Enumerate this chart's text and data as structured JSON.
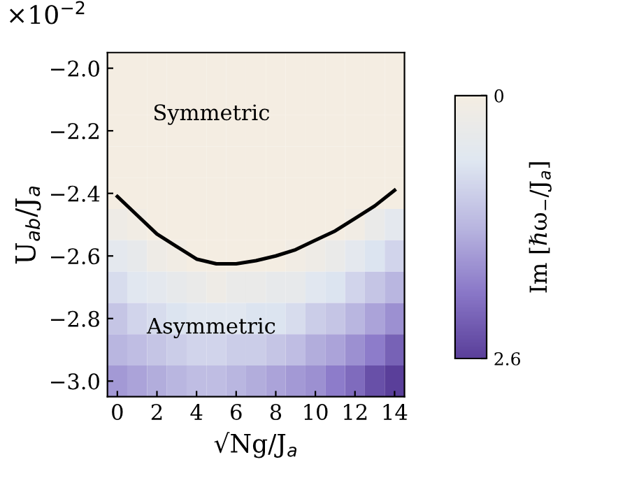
{
  "chart_data": [
    {
      "type": "heatmap",
      "clabel": "Im [ℏω$_{−}$/J$_{a}$]",
      "categories": [
        null,
        null,
        null,
        null,
        null,
        null,
        null,
        null,
        null,
        null,
        null,
        null,
        null,
        null,
        null
      ],
      "y_categories": [
        null,
        null,
        null,
        null,
        null,
        null,
        null,
        null,
        null,
        null,
        null
      ],
      "cells": [
        [
          0,
          0,
          0,
          0,
          0,
          0,
          0,
          0,
          0,
          0,
          0,
          0,
          0,
          0,
          0
        ],
        [
          0,
          0,
          0,
          0,
          0,
          0,
          0,
          0,
          0,
          0,
          0,
          0,
          0,
          0,
          0
        ],
        [
          0,
          0,
          0,
          0,
          0,
          0,
          0,
          0,
          0,
          0,
          0,
          0,
          0,
          0,
          0
        ],
        [
          0,
          0,
          0,
          0,
          0,
          0,
          0,
          0,
          0,
          0,
          0,
          0,
          0,
          0,
          0
        ],
        [
          0,
          0,
          0,
          0,
          0,
          0,
          0,
          0,
          0,
          0,
          0,
          0,
          0,
          0,
          0
        ],
        [
          0.2,
          0.1,
          0,
          0,
          0,
          0,
          0,
          0,
          0,
          0,
          0,
          0,
          0.1,
          0.3,
          0.5
        ],
        [
          0.5,
          0.4,
          0.2,
          0.1,
          0,
          0,
          0,
          0,
          0,
          0.1,
          0.2,
          0.3,
          0.5,
          0.7,
          0.9
        ],
        [
          0.8,
          0.6,
          0.5,
          0.4,
          0.3,
          0.2,
          0.3,
          0.3,
          0.4,
          0.4,
          0.6,
          0.7,
          0.9,
          1.1,
          1.3
        ],
        [
          1.1,
          0.9,
          0.8,
          0.7,
          0.6,
          0.6,
          0.6,
          0.7,
          0.7,
          0.8,
          1.0,
          1.1,
          1.3,
          1.5,
          1.7
        ],
        [
          1.3,
          1.2,
          1.1,
          1.0,
          0.9,
          0.9,
          1.0,
          1.0,
          1.1,
          1.2,
          1.4,
          1.5,
          1.7,
          1.9,
          2.2
        ],
        [
          1.6,
          1.5,
          1.4,
          1.3,
          1.2,
          1.2,
          1.3,
          1.4,
          1.5,
          1.6,
          1.7,
          1.9,
          2.1,
          2.4,
          2.6
        ]
      ],
      "clim": [
        0,
        2.6
      ],
      "cticks": [
        0,
        2.6
      ]
    },
    {
      "type": "line",
      "xlabel": "√Ng/J$_{a}$",
      "ylabel": "U$_{ab}$/J$_{a}$",
      "x": [
        0,
        1,
        2,
        3,
        4,
        5,
        6,
        7,
        8,
        9,
        10,
        11,
        12,
        13,
        14
      ],
      "series": [
        {
          "color": "#000000",
          "values": [
            -2.41,
            -2.47,
            -2.53,
            -2.57,
            -2.61,
            -2.625,
            -2.625,
            -2.615,
            -2.6,
            -2.58,
            -2.55,
            -2.52,
            -2.48,
            -2.44,
            -2.39
          ]
        }
      ],
      "xlim": [
        -0.5,
        14.5
      ],
      "ylim": [
        -3.05,
        -1.95
      ],
      "xticks": [
        0,
        2,
        4,
        6,
        8,
        10,
        12,
        14
      ],
      "yticks": [
        {
          "value": -3.0,
          "label": "−3.0"
        },
        {
          "value": -2.8,
          "label": "−2.8"
        },
        {
          "value": -2.6,
          "label": "−2.6"
        },
        {
          "value": -2.4,
          "label": "−2.4"
        },
        {
          "value": -2.2,
          "label": "−2.2"
        },
        {
          "value": -2.0,
          "label": "−2.0"
        }
      ],
      "annotations": [
        "×10$^{−2}$",
        "Symmetric",
        "Asymmetric"
      ],
      "grid": false,
      "marker": "none",
      "line_style": "solid"
    }
  ]
}
